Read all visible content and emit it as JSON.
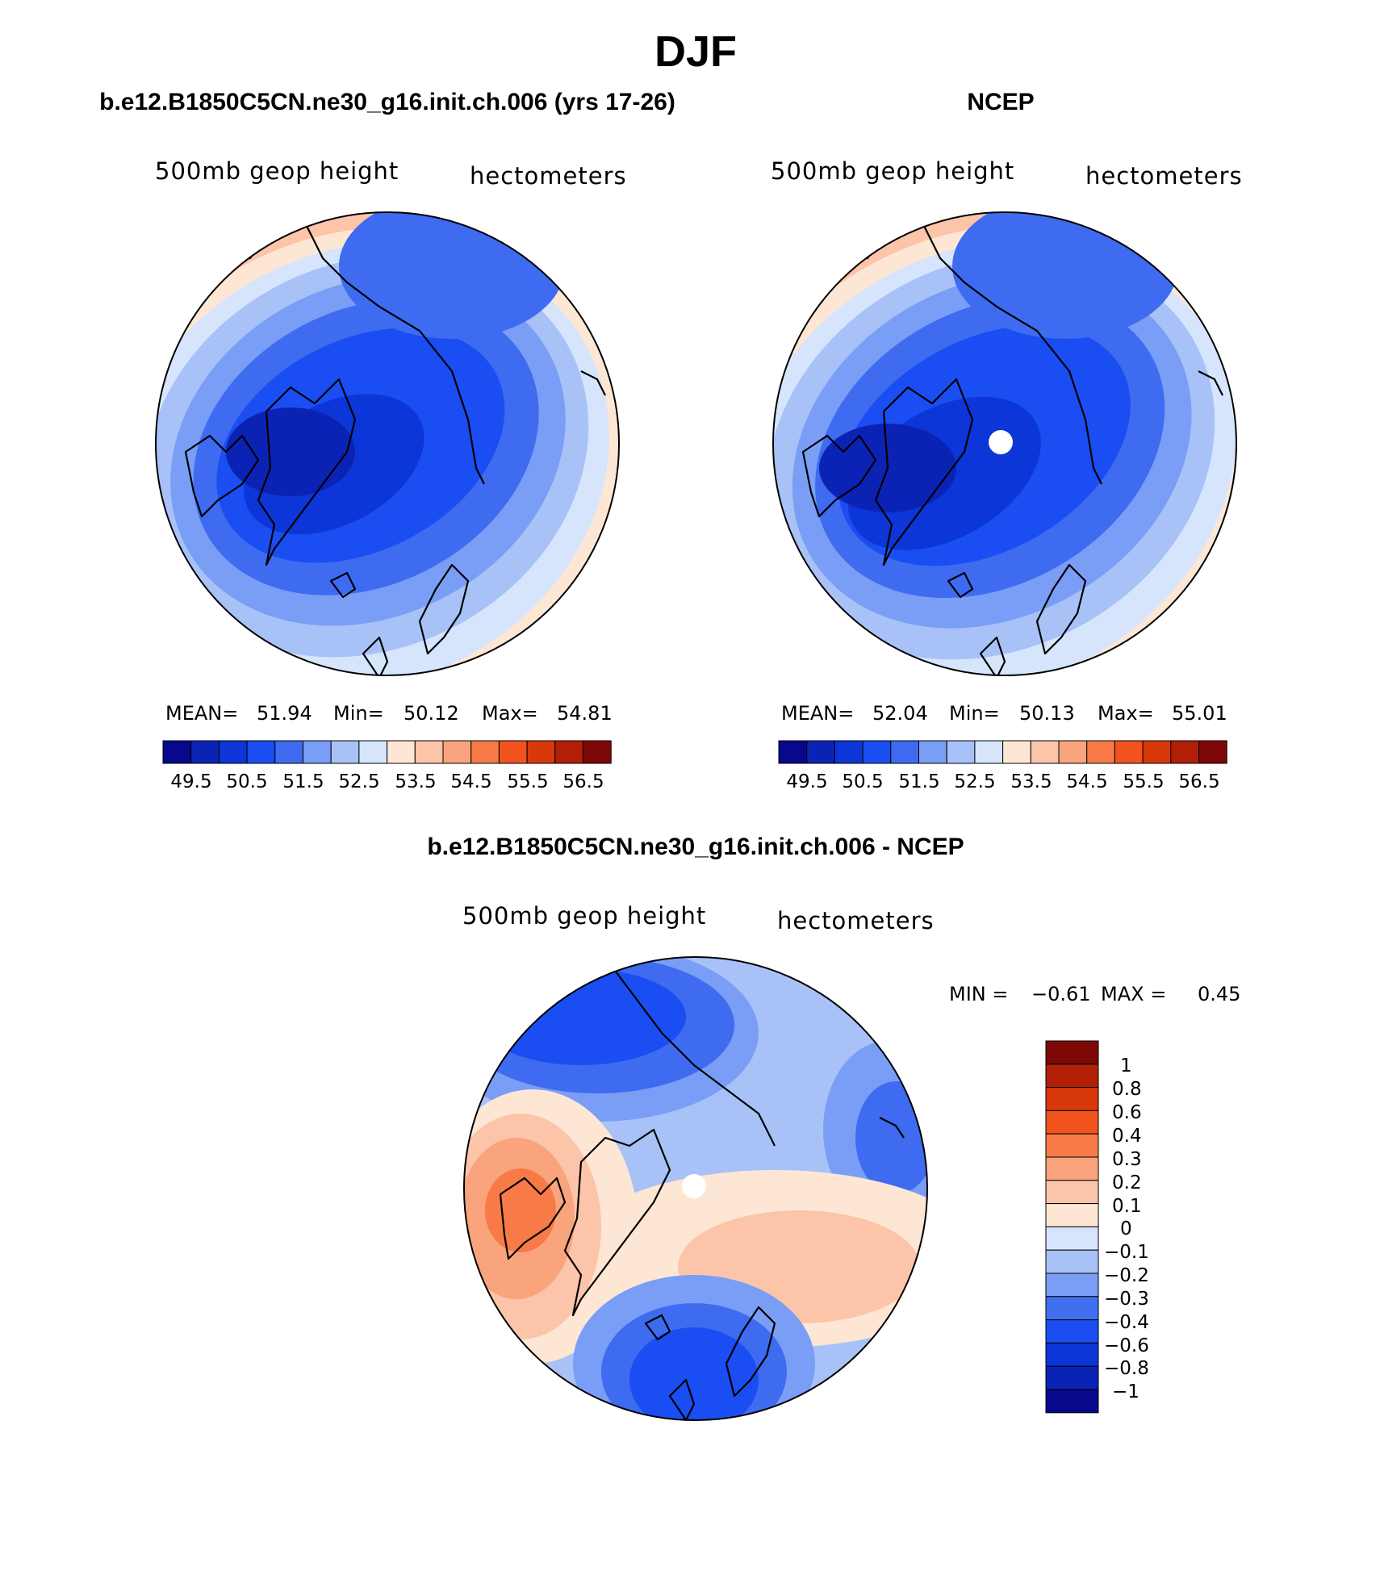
{
  "figure": {
    "title": "DJF",
    "colors": {
      "abs": [
        "#08088c",
        "#0b23b5",
        "#0c36d7",
        "#1a4ef2",
        "#3e6bf0",
        "#7a9ef5",
        "#a8c2f8",
        "#d6e5fc",
        "#fde7d4",
        "#fcc4a8",
        "#f9a47c",
        "#f77a47",
        "#f2531c",
        "#d9380b",
        "#b21f07",
        "#7e0806"
      ],
      "diff": [
        "#08088c",
        "#0b23b5",
        "#0c36d7",
        "#1a4ef2",
        "#4070f0",
        "#7a9ef5",
        "#a8c2f8",
        "#d6e5fc",
        "#fde7d4",
        "#fcc4a8",
        "#f9a47c",
        "#f77a47",
        "#f2531c",
        "#d9380b",
        "#b21f07",
        "#7e0806"
      ]
    }
  },
  "panels": [
    {
      "title": "b.e12.B1850C5CN.ne30_g16.init.ch.006 (yrs 17-26)",
      "left_label": "500mb geop height",
      "right_label": "hectometers",
      "stats_labels": [
        "MEAN=",
        "Min=",
        "Max="
      ],
      "stats_values": [
        "51.94",
        "50.12",
        "54.81"
      ],
      "colorbar_ticks": [
        "49.5",
        "50.5",
        "51.5",
        "52.5",
        "53.5",
        "54.5",
        "55.5",
        "56.5"
      ],
      "pole_hole": false
    },
    {
      "title": "NCEP",
      "left_label": "500mb geop height",
      "right_label": "hectometers",
      "stats_labels": [
        "MEAN=",
        "Min=",
        "Max="
      ],
      "stats_values": [
        "52.04",
        "50.13",
        "55.01"
      ],
      "colorbar_ticks": [
        "49.5",
        "50.5",
        "51.5",
        "52.5",
        "53.5",
        "54.5",
        "55.5",
        "56.5"
      ],
      "pole_hole": true
    },
    {
      "title": "b.e12.B1850C5CN.ne30_g16.init.ch.006 - NCEP",
      "left_label": "500mb geop height",
      "right_label": "hectometers",
      "min_label": "MIN =",
      "min_value": "−0.61",
      "max_label": "MAX =",
      "max_value": "0.45",
      "colorbar_ticks": [
        "1",
        "0.8",
        "0.6",
        "0.4",
        "0.3",
        "0.2",
        "0.1",
        "0",
        "−0.1",
        "−0.2",
        "−0.3",
        "−0.4",
        "−0.6",
        "−0.8",
        "−1"
      ],
      "pole_hole": true
    }
  ]
}
